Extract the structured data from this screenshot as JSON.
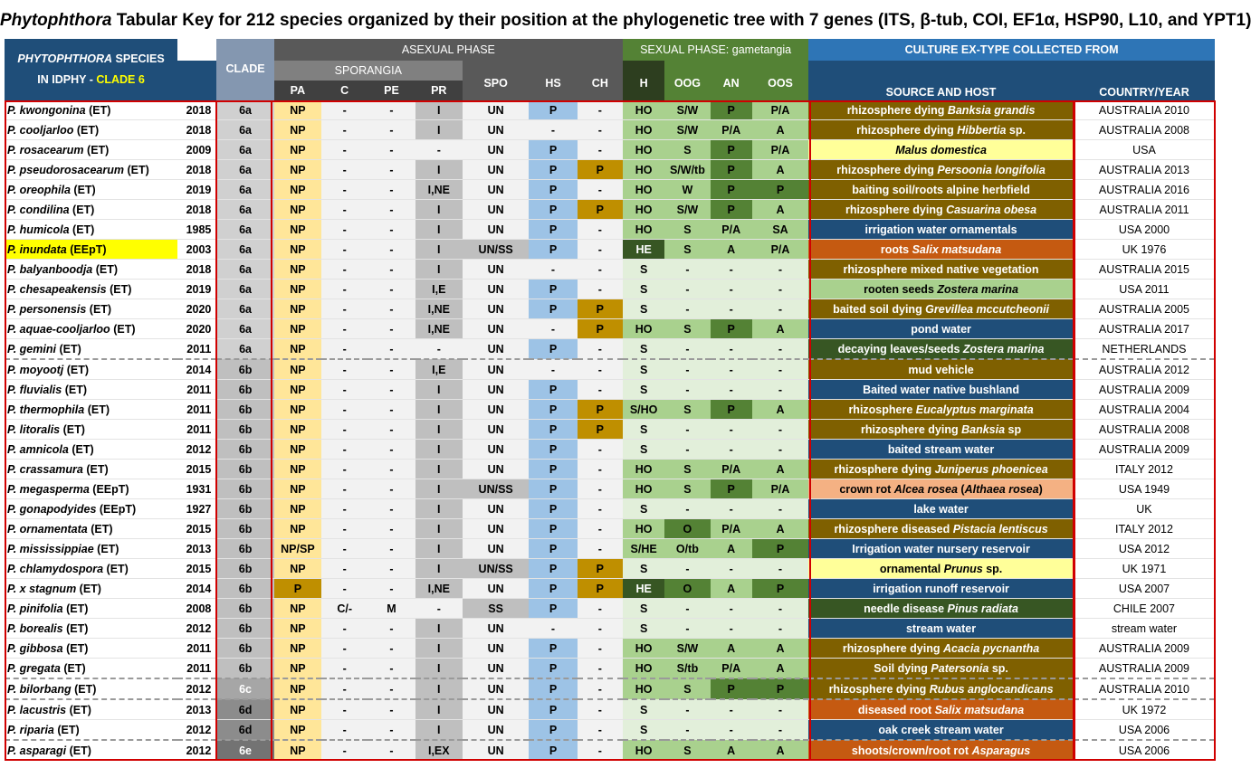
{
  "title": {
    "genus": "Phytophthora",
    "text": " Tabular Key for 212 species organized by their position at the phylogenetic tree with 7 genes (ITS, β-tub, COI, EF1α, HSP90, L10, and YPT1)"
  },
  "header": {
    "species_line1_genus": "PHYTOPHTHORA",
    "species_line1_rest": " SPECIES",
    "species_line2": "IN IDPHY - ",
    "species_clade": "CLADE 6",
    "clade": "CLADE",
    "asexual": "ASEXUAL PHASE",
    "sporangia": "SPORANGIA",
    "sexual": "SEXUAL PHASE: gametangia",
    "culture": "CULTURE EX-TYPE COLLECTED FROM",
    "cols": {
      "pa": "PA",
      "c": "C",
      "pe": "PE",
      "pr": "PR",
      "spo": "SPO",
      "hs": "HS",
      "ch": "CH",
      "h": "H",
      "oog": "OOG",
      "an": "AN",
      "oos": "OOS",
      "source": "SOURCE AND HOST",
      "country": "COUNTRY/YEAR"
    }
  },
  "colors": {
    "header_blue": "#1f4e79",
    "header_gray": "#595959",
    "header_green": "#548235",
    "culture_blue": "#2e75b6",
    "clade_head": "#8497b0",
    "border_red": "#d00000"
  },
  "rows": [
    {
      "name": "P. kwongonina",
      "tag": "(ET)",
      "year": "2018",
      "clade": "6a",
      "pa": "NP",
      "c": "-",
      "pe": "-",
      "pr": "I",
      "spo": "UN",
      "hs": "P",
      "ch": "-",
      "h": "HO",
      "oog": "S/W",
      "an": "P",
      "oos": "P/A",
      "host": "rhizosphere dying ",
      "host_it": "Banksia grandis",
      "host_end": "",
      "host_bg": "#7f6000",
      "country": "AUSTRALIA 2010"
    },
    {
      "name": "P. cooljarloo",
      "tag": "(ET)",
      "year": "2018",
      "clade": "6a",
      "pa": "NP",
      "c": "-",
      "pe": "-",
      "pr": "I",
      "spo": "UN",
      "hs": "-",
      "ch": "-",
      "h": "HO",
      "oog": "S/W",
      "an": "P/A",
      "oos": "A",
      "host": "rhizosphere dying ",
      "host_it": "Hibbertia",
      "host_end": " sp.",
      "host_bg": "#7f6000",
      "country": "AUSTRALIA 2008"
    },
    {
      "name": "P. rosacearum",
      "tag": "(ET)",
      "year": "2009",
      "clade": "6a",
      "pa": "NP",
      "c": "-",
      "pe": "-",
      "pr": "-",
      "spo": "UN",
      "hs": "P",
      "ch": "-",
      "h": "HO",
      "oog": "S",
      "an": "P",
      "oos": "P/A",
      "host": "",
      "host_it": "Malus domestica",
      "host_end": "",
      "host_bg": "#ffff99",
      "country": "USA"
    },
    {
      "name": "P. pseudorosacearum",
      "tag": "(ET)",
      "year": "2018",
      "clade": "6a",
      "pa": "NP",
      "c": "-",
      "pe": "-",
      "pr": "I",
      "spo": "UN",
      "hs": "P",
      "ch": "P",
      "h": "HO",
      "oog": "S/W/tb",
      "an": "P",
      "oos": "A",
      "host": "rhizosphere dying ",
      "host_it": "Persoonia longifolia",
      "host_end": "",
      "host_bg": "#7f6000",
      "country": "AUSTRALIA 2013"
    },
    {
      "name": "P. oreophila",
      "tag": "(ET)",
      "year": "2019",
      "clade": "6a",
      "pa": "NP",
      "c": "-",
      "pe": "-",
      "pr": "I,NE",
      "spo": "UN",
      "hs": "P",
      "ch": "-",
      "h": "HO",
      "oog": "W",
      "an": "P",
      "oos": "P",
      "host": "baiting soil/roots alpine herbfield",
      "host_it": "",
      "host_end": "",
      "host_bg": "#7f6000",
      "country": "AUSTRALIA 2016"
    },
    {
      "name": "P. condilina",
      "tag": "(ET)",
      "year": "2018",
      "clade": "6a",
      "pa": "NP",
      "c": "-",
      "pe": "-",
      "pr": "I",
      "spo": "UN",
      "hs": "P",
      "ch": "P",
      "h": "HO",
      "oog": "S/W",
      "an": "P",
      "oos": "A",
      "host": "rhizosphere dying ",
      "host_it": "Casuarina obesa",
      "host_end": "",
      "host_bg": "#7f6000",
      "country": "AUSTRALIA 2011"
    },
    {
      "name": "P. humicola",
      "tag": "(ET)",
      "year": "1985",
      "clade": "6a",
      "pa": "NP",
      "c": "-",
      "pe": "-",
      "pr": "I",
      "spo": "UN",
      "hs": "P",
      "ch": "-",
      "h": "HO",
      "oog": "S",
      "an": "P/A",
      "oos": "SA",
      "host": "irrigation water ornamentals",
      "host_it": "",
      "host_end": "",
      "host_bg": "#1f4e79",
      "country": "USA 2000"
    },
    {
      "name": "P. inundata",
      "tag": "(EEpT)",
      "year": "2003",
      "clade": "6a",
      "pa": "NP",
      "c": "-",
      "pe": "-",
      "pr": "I",
      "spo": "UN/SS",
      "hs": "P",
      "ch": "-",
      "h": "HE",
      "oog": "S",
      "an": "A",
      "oos": "P/A",
      "host": "roots ",
      "host_it": "Salix matsudana",
      "host_end": "",
      "host_bg": "#c55a11",
      "country": "UK 1976",
      "highlight": true
    },
    {
      "name": "P. balyanboodja",
      "tag": "(ET)",
      "year": "2018",
      "clade": "6a",
      "pa": "NP",
      "c": "-",
      "pe": "-",
      "pr": "I",
      "spo": "UN",
      "hs": "-",
      "ch": "-",
      "h": "S",
      "oog": "-",
      "an": "-",
      "oos": "-",
      "host": "rhizosphere mixed native vegetation",
      "host_it": "",
      "host_end": "",
      "host_bg": "#7f6000",
      "country": "AUSTRALIA 2015"
    },
    {
      "name": "P. chesapeakensis",
      "tag": "(ET)",
      "year": "2019",
      "clade": "6a",
      "pa": "NP",
      "c": "-",
      "pe": "-",
      "pr": "I,E",
      "spo": "UN",
      "hs": "P",
      "ch": "-",
      "h": "S",
      "oog": "-",
      "an": "-",
      "oos": "-",
      "host": "rooten seeds ",
      "host_it": "Zostera marina",
      "host_end": "",
      "host_bg": "#a9d18e",
      "country": "USA 2011"
    },
    {
      "name": "P. personensis",
      "tag": "(ET)",
      "year": "2020",
      "clade": "6a",
      "pa": "NP",
      "c": "-",
      "pe": "-",
      "pr": "I,NE",
      "spo": "UN",
      "hs": "P",
      "ch": "P",
      "h": "S",
      "oog": "-",
      "an": "-",
      "oos": "-",
      "host": "baited soil dying ",
      "host_it": "Grevillea mccutcheonii",
      "host_end": "",
      "host_bg": "#7f6000",
      "country": "AUSTRALIA 2005"
    },
    {
      "name": "P. aquae-cooljarloo",
      "tag": "(ET)",
      "year": "2020",
      "clade": "6a",
      "pa": "NP",
      "c": "-",
      "pe": "-",
      "pr": "I,NE",
      "spo": "UN",
      "hs": "-",
      "ch": "P",
      "h": "HO",
      "oog": "S",
      "an": "P",
      "oos": "A",
      "host": "pond water",
      "host_it": "",
      "host_end": "",
      "host_bg": "#1f4e79",
      "country": "AUSTRALIA 2017"
    },
    {
      "name": "P. gemini",
      "tag": "(ET)",
      "year": "2011",
      "clade": "6a",
      "pa": "NP",
      "c": "-",
      "pe": "-",
      "pr": "-",
      "spo": "UN",
      "hs": "P",
      "ch": "-",
      "h": "S",
      "oog": "-",
      "an": "-",
      "oos": "-",
      "host": "decaying leaves/seeds ",
      "host_it": "Zostera marina",
      "host_end": "",
      "host_bg": "#375623",
      "country": "NETHERLANDS",
      "sep": true
    },
    {
      "name": "P. moyootj",
      "tag": "(ET)",
      "year": "2014",
      "clade": "6b",
      "pa": "NP",
      "c": "-",
      "pe": "-",
      "pr": "I,E",
      "spo": "UN",
      "hs": "-",
      "ch": "-",
      "h": "S",
      "oog": "-",
      "an": "-",
      "oos": "-",
      "host": "mud vehicle",
      "host_it": "",
      "host_end": "",
      "host_bg": "#7f6000",
      "country": "AUSTRALIA 2012"
    },
    {
      "name": "P. fluvialis",
      "tag": "(ET)",
      "year": "2011",
      "clade": "6b",
      "pa": "NP",
      "c": "-",
      "pe": "-",
      "pr": "I",
      "spo": "UN",
      "hs": "P",
      "ch": "-",
      "h": "S",
      "oog": "-",
      "an": "-",
      "oos": "-",
      "host": "Baited  water native bushland",
      "host_it": "",
      "host_end": "",
      "host_bg": "#1f4e79",
      "country": "AUSTRALIA 2009"
    },
    {
      "name": "P. thermophila",
      "tag": "(ET)",
      "year": "2011",
      "clade": "6b",
      "pa": "NP",
      "c": "-",
      "pe": "-",
      "pr": "I",
      "spo": "UN",
      "hs": "P",
      "ch": "P",
      "h": "S/HO",
      "oog": "S",
      "an": "P",
      "oos": "A",
      "host": "rhizosphere ",
      "host_it": "Eucalyptus marginata",
      "host_end": "",
      "host_bg": "#7f6000",
      "country": "AUSTRALIA 2004"
    },
    {
      "name": "P. litoralis",
      "tag": "(ET)",
      "year": "2011",
      "clade": "6b",
      "pa": "NP",
      "c": "-",
      "pe": "-",
      "pr": "I",
      "spo": "UN",
      "hs": "P",
      "ch": "P",
      "h": "S",
      "oog": "-",
      "an": "-",
      "oos": "-",
      "host": "rhizosphere dying ",
      "host_it": "Banksia",
      "host_end": " sp",
      "host_bg": "#7f6000",
      "country": "AUSTRALIA 2008"
    },
    {
      "name": "P. amnicola",
      "tag": "(ET)",
      "year": "2012",
      "clade": "6b",
      "pa": "NP",
      "c": "-",
      "pe": "-",
      "pr": "I",
      "spo": "UN",
      "hs": "P",
      "ch": "-",
      "h": "S",
      "oog": "-",
      "an": "-",
      "oos": "-",
      "host": "baited stream water",
      "host_it": "",
      "host_end": "",
      "host_bg": "#1f4e79",
      "country": "AUSTRALIA 2009"
    },
    {
      "name": "P. crassamura",
      "tag": "(ET)",
      "year": "2015",
      "clade": "6b",
      "pa": "NP",
      "c": "-",
      "pe": "-",
      "pr": "I",
      "spo": "UN",
      "hs": "P",
      "ch": "-",
      "h": "HO",
      "oog": "S",
      "an": "P/A",
      "oos": "A",
      "host": "rhizosphere dying ",
      "host_it": "Juniperus phoenicea",
      "host_end": "",
      "host_bg": "#7f6000",
      "country": "ITALY 2012"
    },
    {
      "name": "P. megasperma",
      "tag": "(EEpT)",
      "year": "1931",
      "clade": "6b",
      "pa": "NP",
      "c": "-",
      "pe": "-",
      "pr": "I",
      "spo": "UN/SS",
      "hs": "P",
      "ch": "-",
      "h": "HO",
      "oog": "S",
      "an": "P",
      "oos": "P/A",
      "host": "crown rot ",
      "host_it": "Alcea rosea",
      "host_end": " (",
      "host_it2": "Althaea rosea",
      "host_end2": ")",
      "host_bg": "#f4b183",
      "country": "USA 1949"
    },
    {
      "name": "P. gonapodyides",
      "tag": "(EEpT)",
      "year": "1927",
      "clade": "6b",
      "pa": "NP",
      "c": "-",
      "pe": "-",
      "pr": "I",
      "spo": "UN",
      "hs": "P",
      "ch": "-",
      "h": "S",
      "oog": "-",
      "an": "-",
      "oos": "-",
      "host": "lake water",
      "host_it": "",
      "host_end": "",
      "host_bg": "#1f4e79",
      "country": "UK"
    },
    {
      "name": "P. ornamentata",
      "tag": "(ET)",
      "year": "2015",
      "clade": "6b",
      "pa": "NP",
      "c": "-",
      "pe": "-",
      "pr": "I",
      "spo": "UN",
      "hs": "P",
      "ch": "-",
      "h": "HO",
      "oog": "O",
      "an": "P/A",
      "oos": "A",
      "host": "rhizosphere diseased ",
      "host_it": "Pistacia lentiscus",
      "host_end": "",
      "host_bg": "#7f6000",
      "country": "ITALY 2012"
    },
    {
      "name": "P. mississippiae",
      "tag": "(ET)",
      "year": "2013",
      "clade": "6b",
      "pa": "NP/SP",
      "c": "-",
      "pe": "-",
      "pr": "I",
      "spo": "UN",
      "hs": "P",
      "ch": "-",
      "h": "S/HE",
      "oog": "O/tb",
      "an": "A",
      "oos": "P",
      "host": "Irrigation water nursery reservoir",
      "host_it": "",
      "host_end": "",
      "host_bg": "#1f4e79",
      "country": "USA 2012"
    },
    {
      "name": "P. chlamydospora",
      "tag": "(ET)",
      "year": "2015",
      "clade": "6b",
      "pa": "NP",
      "c": "-",
      "pe": "-",
      "pr": "I",
      "spo": "UN/SS",
      "hs": "P",
      "ch": "P",
      "h": "S",
      "oog": "-",
      "an": "-",
      "oos": "-",
      "host": "ornamental ",
      "host_it": "Prunus",
      "host_end": " sp.",
      "host_bg": "#ffff99",
      "country": "UK 1971"
    },
    {
      "name": "P. x stagnum",
      "tag": "(ET)",
      "year": "2014",
      "clade": "6b",
      "pa": "P",
      "c": "-",
      "pe": "-",
      "pr": "I,NE",
      "spo": "UN",
      "hs": "P",
      "ch": "P",
      "h": "HE",
      "oog": "O",
      "an": "A",
      "oos": "P",
      "host": "irrigation runoff reservoir",
      "host_it": "",
      "host_end": "",
      "host_bg": "#1f4e79",
      "country": "USA 2007"
    },
    {
      "name": "P. pinifolia",
      "tag": "(ET)",
      "year": "2008",
      "clade": "6b",
      "pa": "NP",
      "c": "C/-",
      "pe": "M",
      "pr": "-",
      "spo": "SS",
      "hs": "P",
      "ch": "-",
      "h": "S",
      "oog": "-",
      "an": "-",
      "oos": "-",
      "host": "needle disease ",
      "host_it": "Pinus radiata",
      "host_end": "",
      "host_bg": "#375623",
      "country": "CHILE 2007"
    },
    {
      "name": "P. borealis",
      "tag": "(ET)",
      "year": "2012",
      "clade": "6b",
      "pa": "NP",
      "c": "-",
      "pe": "-",
      "pr": "I",
      "spo": "UN",
      "hs": "-",
      "ch": "-",
      "h": "S",
      "oog": "-",
      "an": "-",
      "oos": "-",
      "host": "stream water",
      "host_it": "",
      "host_end": "",
      "host_bg": "#1f4e79",
      "country": "stream water"
    },
    {
      "name": "P. gibbosa",
      "tag": "(ET)",
      "year": "2011",
      "clade": "6b",
      "pa": "NP",
      "c": "-",
      "pe": "-",
      "pr": "I",
      "spo": "UN",
      "hs": "P",
      "ch": "-",
      "h": "HO",
      "oog": "S/W",
      "an": "A",
      "oos": "A",
      "host": "rhizosphere dying ",
      "host_it": "Acacia pycnantha",
      "host_end": "",
      "host_bg": "#7f6000",
      "country": "AUSTRALIA 2009"
    },
    {
      "name": "P. gregata",
      "tag": "(ET)",
      "year": "2011",
      "clade": "6b",
      "pa": "NP",
      "c": "-",
      "pe": "-",
      "pr": "I",
      "spo": "UN",
      "hs": "P",
      "ch": "-",
      "h": "HO",
      "oog": "S/tb",
      "an": "P/A",
      "oos": "A",
      "host": "Soil dying ",
      "host_it": "Patersonia",
      "host_end": " sp.",
      "host_bg": "#7f6000",
      "country": "AUSTRALIA 2009",
      "sep": true
    },
    {
      "name": "P. bilorbang",
      "tag": "(ET)",
      "year": "2012",
      "clade": "6c",
      "pa": "NP",
      "c": "-",
      "pe": "-",
      "pr": "I",
      "spo": "UN",
      "hs": "P",
      "ch": "-",
      "h": "HO",
      "oog": "S",
      "an": "P",
      "oos": "P",
      "host": "rhizosphere dying ",
      "host_it": "Rubus anglocandicans",
      "host_end": "",
      "host_bg": "#7f6000",
      "country": "AUSTRALIA 2010",
      "sep": true
    },
    {
      "name": "P. lacustris",
      "tag": "(ET)",
      "year": "2013",
      "clade": "6d",
      "pa": "NP",
      "c": "-",
      "pe": "-",
      "pr": "I",
      "spo": "UN",
      "hs": "P",
      "ch": "-",
      "h": "S",
      "oog": "-",
      "an": "-",
      "oos": "-",
      "host": "diseased root ",
      "host_it": "Salix matsudana",
      "host_end": "",
      "host_bg": "#c55a11",
      "country": "UK 1972"
    },
    {
      "name": "P. riparia",
      "tag": "(ET)",
      "year": "2012",
      "clade": "6d",
      "pa": "NP",
      "c": "-",
      "pe": "-",
      "pr": "I",
      "spo": "UN",
      "hs": "P",
      "ch": "-",
      "h": "S",
      "oog": "-",
      "an": "-",
      "oos": "-",
      "host": "oak creek stream water",
      "host_it": "",
      "host_end": "",
      "host_bg": "#1f4e79",
      "country": "USA 2006",
      "sep": true
    },
    {
      "name": "P. asparagi",
      "tag": "(ET)",
      "year": "2012",
      "clade": "6e",
      "pa": "NP",
      "c": "-",
      "pe": "-",
      "pr": "I,EX",
      "spo": "UN",
      "hs": "P",
      "ch": "-",
      "h": "HO",
      "oog": "S",
      "an": "A",
      "oos": "A",
      "host": "shoots/crown/root rot ",
      "host_it": "Asparagus",
      "host_end": "",
      "host_bg": "#c55a11",
      "country": "USA 2006"
    }
  ]
}
